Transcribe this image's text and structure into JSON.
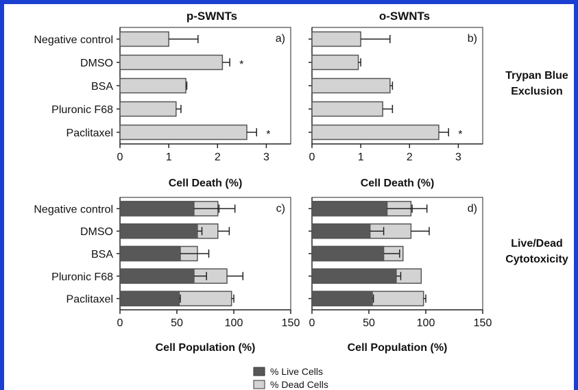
{
  "column_titles": [
    "p-SWNTs",
    "o-SWNTs"
  ],
  "row_titles": {
    "top": [
      "Trypan Blue",
      "Exclusion"
    ],
    "bottom": [
      "Live/Dead",
      "Cytotoxicity"
    ]
  },
  "categories": [
    "Negative control",
    "DMSO",
    "BSA",
    "Pluronic F68",
    "Paclitaxel"
  ],
  "legend": [
    {
      "label": "% Live Cells",
      "color": "#585858"
    },
    {
      "label": "% Dead Cells",
      "color": "#d3d3d3"
    }
  ],
  "colors": {
    "frame": "#1a3fd1",
    "bar_light": "#d3d3d3",
    "bar_dark": "#585858",
    "stroke": "#555555"
  },
  "chart_data": [
    {
      "id": "a",
      "panel_label": "a)",
      "type": "bar",
      "orientation": "horizontal",
      "xlabel": "Cell Death (%)",
      "xlim": [
        0,
        3.5
      ],
      "xticks": [
        0,
        1,
        2,
        3
      ],
      "categories": [
        "Negative control",
        "DMSO",
        "BSA",
        "Pluronic F68",
        "Paclitaxel"
      ],
      "values": [
        1.0,
        2.1,
        1.35,
        1.15,
        2.6
      ],
      "errors": [
        0.6,
        0.15,
        0.02,
        0.1,
        0.2
      ],
      "significance": [
        "",
        "*",
        "",
        "",
        "*"
      ]
    },
    {
      "id": "b",
      "panel_label": "b)",
      "type": "bar",
      "orientation": "horizontal",
      "xlabel": "Cell Death (%)",
      "xlim": [
        0,
        3.5
      ],
      "xticks": [
        0,
        1,
        2,
        3
      ],
      "categories": [
        "Negative control",
        "DMSO",
        "BSA",
        "Pluronic F68",
        "Paclitaxel"
      ],
      "values": [
        1.0,
        0.95,
        1.6,
        1.45,
        2.6
      ],
      "errors": [
        0.6,
        0.05,
        0.05,
        0.2,
        0.2
      ],
      "significance": [
        "",
        "",
        "",
        "",
        "*"
      ]
    },
    {
      "id": "c",
      "panel_label": "c)",
      "type": "bar",
      "orientation": "horizontal",
      "stacked": false,
      "xlabel": "Cell Population (%)",
      "xlim": [
        0,
        150
      ],
      "xticks": [
        0,
        50,
        100,
        150
      ],
      "categories": [
        "Negative control",
        "DMSO",
        "BSA",
        "Pluronic F68",
        "Paclitaxel"
      ],
      "series": [
        {
          "name": "% Dead Cells",
          "values": [
            86,
            86,
            68,
            94,
            98
          ],
          "errors": [
            15,
            10,
            0,
            14,
            2
          ]
        },
        {
          "name": "% Live Cells",
          "values": [
            65,
            68,
            53,
            65,
            52
          ],
          "errors": [
            22,
            4,
            25,
            11,
            1
          ]
        }
      ]
    },
    {
      "id": "d",
      "panel_label": "d)",
      "type": "bar",
      "orientation": "horizontal",
      "stacked": false,
      "xlabel": "Cell Population (%)",
      "xlim": [
        0,
        150
      ],
      "xticks": [
        0,
        50,
        100,
        150
      ],
      "categories": [
        "Negative control",
        "DMSO",
        "BSA",
        "Pluronic F68",
        "Paclitaxel"
      ],
      "series": [
        {
          "name": "% Dead Cells",
          "values": [
            87,
            87,
            80,
            96,
            98
          ],
          "errors": [
            14,
            16,
            0,
            0,
            2
          ]
        },
        {
          "name": "% Live Cells",
          "values": [
            66,
            51,
            63,
            74,
            53
          ],
          "errors": [
            22,
            12,
            14,
            4,
            1
          ]
        }
      ]
    }
  ]
}
